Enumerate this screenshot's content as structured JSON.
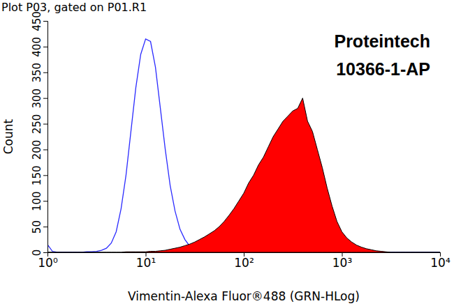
{
  "chart_data": {
    "type": "line",
    "title": "Plot P03, gated on P01.R1",
    "annotations": [
      "Proteintech",
      "10366-1-AP"
    ],
    "x_label": "Vimentin-Alexa Fluor®488 (GRN-HLog)",
    "y_label": "Count",
    "log": "x",
    "grid": false,
    "x": [
      1,
      1.122,
      1.259,
      1.413,
      1.585,
      1.778,
      1.995,
      2.239,
      2.512,
      2.818,
      3.162,
      3.548,
      3.981,
      4.467,
      5.012,
      5.623,
      6.31,
      7.079,
      7.943,
      8.913,
      10,
      11.22,
      12.59,
      14.13,
      15.85,
      17.78,
      19.95,
      22.39,
      25.12,
      28.18,
      31.62,
      35.48,
      39.81,
      44.67,
      50.12,
      56.23,
      63.1,
      70.79,
      79.43,
      89.13,
      100,
      112.2,
      125.9,
      141.3,
      158.5,
      177.8,
      199.5,
      223.9,
      251.2,
      281.8,
      316.2,
      354.8,
      398.1,
      446.7,
      501.2,
      562.3,
      631,
      707.9,
      794.3,
      891.3,
      1000,
      1122,
      1259,
      1413,
      1585,
      1778,
      1995,
      2239,
      2512,
      2818,
      3162,
      3548,
      3981,
      4467,
      5012,
      5623,
      6310,
      7079,
      7943,
      8913,
      10000
    ],
    "series": [
      {
        "type": "line",
        "color": "#2b2bff",
        "values": [
          15,
          2,
          0,
          0,
          0,
          0,
          0,
          0,
          1,
          1,
          2,
          4,
          8,
          18,
          40,
          85,
          150,
          235,
          320,
          385,
          415,
          410,
          360,
          280,
          200,
          130,
          80,
          45,
          25,
          12,
          6,
          3,
          2,
          1,
          0,
          0,
          0,
          0,
          0,
          0,
          0,
          0,
          0,
          0,
          0,
          0,
          0,
          0,
          0,
          0,
          0,
          0,
          0,
          0,
          0,
          0,
          0,
          0,
          0,
          0,
          0,
          0,
          0,
          0,
          0,
          0,
          0,
          0,
          0,
          0,
          0,
          0,
          0,
          0,
          0,
          0,
          0,
          0,
          0,
          0,
          0
        ]
      },
      {
        "type": "area",
        "color": "#ff0000",
        "values": [
          0,
          0,
          0,
          0,
          0,
          0,
          0,
          0,
          0,
          0,
          0,
          0,
          0,
          0,
          0,
          0,
          1,
          1,
          1,
          1,
          1,
          2,
          2,
          3,
          4,
          6,
          8,
          10,
          13,
          16,
          20,
          25,
          30,
          36,
          42,
          50,
          60,
          72,
          85,
          100,
          115,
          135,
          150,
          170,
          185,
          205,
          225,
          240,
          255,
          265,
          275,
          280,
          300,
          255,
          235,
          200,
          165,
          125,
          90,
          60,
          40,
          28,
          20,
          14,
          10,
          7,
          5,
          3,
          2,
          1,
          0,
          0,
          0,
          0,
          0,
          0,
          0,
          0,
          0,
          0,
          0
        ]
      }
    ],
    "xlim": [
      1,
      10000
    ],
    "xticks": [
      {
        "value": 1,
        "label": "10⁰"
      },
      {
        "value": 10,
        "label": "10¹"
      },
      {
        "value": 100,
        "label": "10²"
      },
      {
        "value": 1000,
        "label": "10³"
      },
      {
        "value": 10000,
        "label": "10⁴"
      }
    ],
    "ylim": [
      0,
      450
    ],
    "yticks": [
      0,
      50,
      100,
      150,
      200,
      250,
      300,
      350,
      400,
      450
    ]
  }
}
